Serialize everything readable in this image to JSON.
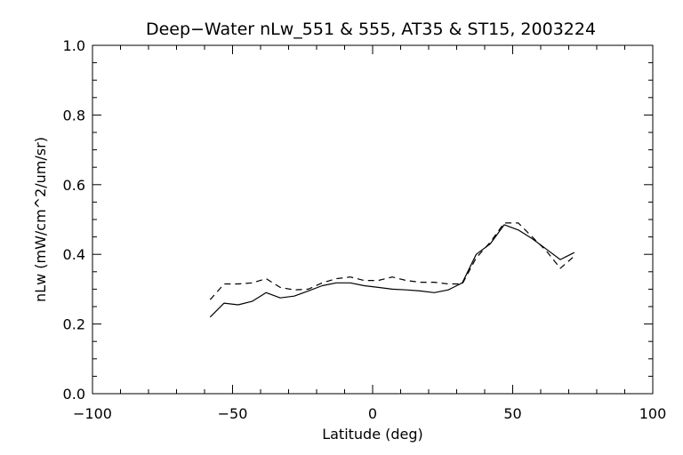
{
  "chart_data": {
    "type": "line",
    "title": "Deep−Water nLw_551 & 555, AT35 & ST15, 2003224",
    "xlabel": "Latitude (deg)",
    "ylabel": "nLw (mW/cm^2/um/sr)",
    "xlim": [
      -100,
      100
    ],
    "ylim": [
      0.0,
      1.0
    ],
    "x_ticks": [
      -100,
      -50,
      0,
      50,
      100
    ],
    "x_tick_labels": [
      "−100",
      "−50",
      "0",
      "50",
      "100"
    ],
    "y_ticks": [
      0.0,
      0.2,
      0.4,
      0.6,
      0.8,
      1.0
    ],
    "y_tick_labels": [
      "0.0",
      "0.2",
      "0.4",
      "0.6",
      "0.8",
      "1.0"
    ],
    "grid": false,
    "series": [
      {
        "style": "solid",
        "x": [
          -58,
          -53,
          -48,
          -43,
          -38,
          -33,
          -28,
          -23,
          -18,
          -13,
          -8,
          -3,
          2,
          7,
          12,
          17,
          22,
          27,
          32,
          37,
          42,
          47,
          52,
          57,
          62,
          67,
          72
        ],
        "y": [
          0.22,
          0.26,
          0.255,
          0.265,
          0.29,
          0.275,
          0.28,
          0.295,
          0.31,
          0.318,
          0.318,
          0.31,
          0.305,
          0.3,
          0.298,
          0.295,
          0.29,
          0.298,
          0.318,
          0.4,
          0.43,
          0.485,
          0.47,
          0.445,
          0.415,
          0.385,
          0.405
        ]
      },
      {
        "style": "dashed",
        "x": [
          -58,
          -53,
          -48,
          -43,
          -38,
          -33,
          -28,
          -23,
          -18,
          -13,
          -8,
          -3,
          2,
          7,
          12,
          17,
          22,
          27,
          32,
          37,
          42,
          47,
          52,
          57,
          62,
          67,
          72
        ],
        "y": [
          0.27,
          0.315,
          0.315,
          0.318,
          0.33,
          0.305,
          0.298,
          0.3,
          0.318,
          0.33,
          0.335,
          0.325,
          0.325,
          0.335,
          0.325,
          0.32,
          0.32,
          0.315,
          0.315,
          0.39,
          0.435,
          0.49,
          0.49,
          0.45,
          0.41,
          0.36,
          0.395
        ]
      }
    ]
  }
}
